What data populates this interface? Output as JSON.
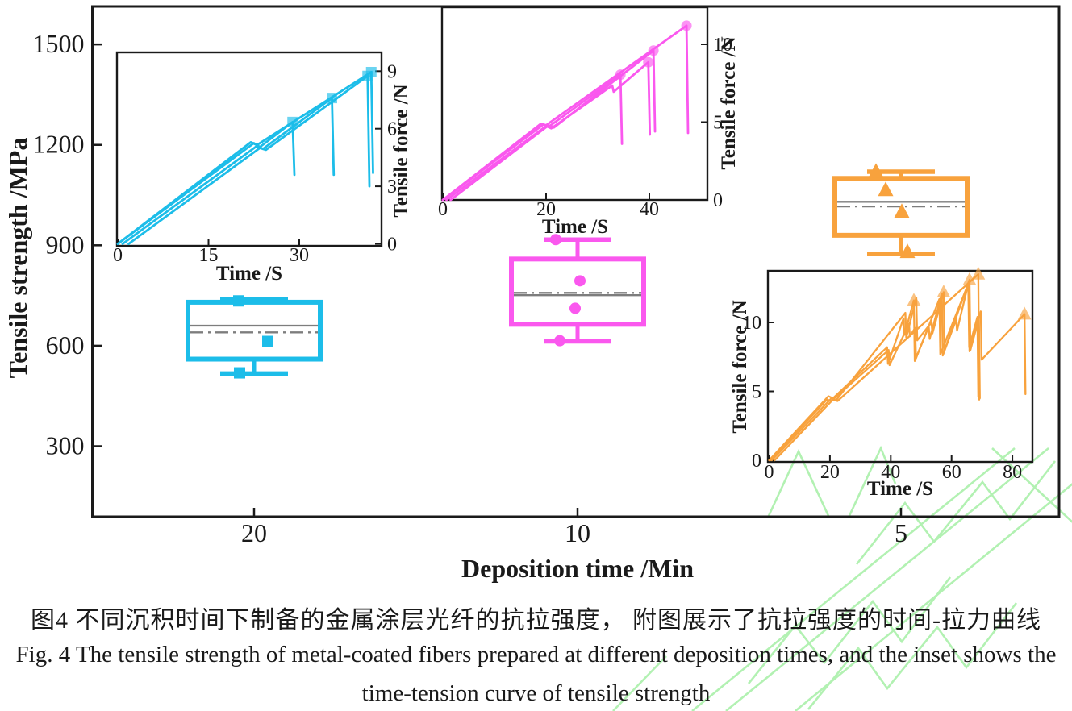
{
  "figure_caption": {
    "zh": "图4  不同沉积时间下制备的金属涂层光纤的抗拉强度， 附图展示了抗拉强度的时间-拉力曲线",
    "en_line1": "Fig. 4 The tensile strength of metal-coated fibers prepared at different deposition times, and the inset shows the",
    "en_line2": "time-tension curve of tensile strength"
  },
  "colors": {
    "cyan": "#1cbde9",
    "magenta": "#fa58ee",
    "orange": "#f8a23d",
    "axis": "#1a1a1a",
    "stat_line": "#7d7d7d",
    "watermark": "#a5efa5"
  },
  "chart_data": [
    {
      "id": "main-boxplot",
      "type": "box",
      "xlabel": "Deposition time /Min",
      "ylabel": "Tensile strength /MPa",
      "categories": [
        "20",
        "10",
        "5"
      ],
      "y_ticks": [
        300,
        600,
        900,
        1200,
        1500
      ],
      "ylim": [
        150,
        1590
      ],
      "grid": false,
      "series": [
        {
          "name": "20min",
          "color": "#1cbde9",
          "marker": "square",
          "box": {
            "whisker_low": 517,
            "q1": 560,
            "median": 660,
            "mean": 640,
            "q3": 730,
            "whisker_high": 740
          },
          "data_points": [
            [
              -19,
              734
            ],
            [
              17,
              613
            ],
            [
              -18,
              519
            ]
          ]
        },
        {
          "name": "10min",
          "color": "#fa58ee",
          "marker": "circle",
          "box": {
            "whisker_low": 613,
            "q1": 664,
            "median": 751,
            "mean": 758,
            "q3": 859,
            "whisker_high": 917
          },
          "data_points": [
            [
              -27,
              917
            ],
            [
              3,
              794
            ],
            [
              -3,
              712
            ],
            [
              -22,
              615
            ]
          ]
        },
        {
          "name": "5min",
          "color": "#f8a23d",
          "marker": "triangle",
          "box": {
            "whisker_low": 875,
            "q1": 930,
            "median": 1030,
            "mean": 1016,
            "q3": 1100,
            "whisker_high": 1120
          },
          "data_points": [
            [
              -31,
              1120
            ],
            [
              -19,
              1065
            ],
            [
              1,
              1000
            ],
            [
              8,
              880
            ]
          ]
        }
      ]
    },
    {
      "id": "inset-20min",
      "type": "line",
      "xlabel": "Time /S",
      "ylabel": "Tensile force /N",
      "x_ticks": [
        0,
        15,
        30
      ],
      "y_ticks": [
        0,
        3,
        6,
        9
      ],
      "xlim": [
        0,
        43.6
      ],
      "ylim": [
        0,
        10.1
      ],
      "y_axis_side": "right",
      "color": "#1cbde9",
      "marker": "square",
      "series": [
        {
          "points": [
            [
              0,
              0
            ],
            [
              22.5,
              5.25
            ],
            [
              23.5,
              5.05
            ],
            [
              28.9,
              6.35
            ],
            [
              29.2,
              3.6
            ]
          ]
        },
        {
          "points": [
            [
              0.8,
              0
            ],
            [
              23,
              5.1
            ],
            [
              24,
              4.95
            ],
            [
              35.4,
              7.6
            ],
            [
              35.7,
              3.6
            ]
          ]
        },
        {
          "points": [
            [
              1.8,
              0
            ],
            [
              23.5,
              5.0
            ],
            [
              24.5,
              4.9
            ],
            [
              41.3,
              8.75
            ],
            [
              41.6,
              3.0
            ]
          ]
        },
        {
          "points": [
            [
              0,
              0
            ],
            [
              22,
              5.3
            ],
            [
              23,
              5.15
            ],
            [
              41.9,
              8.95
            ],
            [
              42.2,
              3.7
            ]
          ]
        }
      ],
      "peak_markers": [
        [
          28.9,
          6.35
        ],
        [
          35.4,
          7.6
        ],
        [
          41.3,
          8.75
        ],
        [
          41.9,
          8.95
        ]
      ]
    },
    {
      "id": "inset-10min",
      "type": "line",
      "xlabel": "Time /S",
      "ylabel": "Tensile force /N",
      "x_ticks": [
        0,
        20,
        40
      ],
      "y_ticks": [
        0,
        5,
        10
      ],
      "xlim": [
        0,
        51.3
      ],
      "ylim": [
        0,
        12.3
      ],
      "y_axis_side": "right",
      "color": "#fa58ee",
      "marker": "circle",
      "series": [
        {
          "points": [
            [
              0,
              0
            ],
            [
              19.5,
              4.85
            ],
            [
              20.5,
              4.7
            ],
            [
              34.4,
              8.05
            ],
            [
              34.7,
              3.6
            ]
          ]
        },
        {
          "points": [
            [
              0.7,
              0
            ],
            [
              20,
              4.75
            ],
            [
              21,
              4.6
            ],
            [
              32.8,
              7.35
            ],
            [
              33.1,
              6.95
            ],
            [
              39.8,
              8.85
            ],
            [
              40.1,
              4.2
            ]
          ]
        },
        {
          "points": [
            [
              1.5,
              0
            ],
            [
              20.5,
              4.8
            ],
            [
              21.5,
              4.65
            ],
            [
              40.8,
              9.6
            ],
            [
              41.1,
              4.4
            ]
          ]
        },
        {
          "points": [
            [
              0,
              0
            ],
            [
              19,
              4.9
            ],
            [
              20,
              4.8
            ],
            [
              47.2,
              11.2
            ],
            [
              47.5,
              4.3
            ]
          ]
        }
      ],
      "peak_markers": [
        [
          34.4,
          8.05
        ],
        [
          39.8,
          8.85
        ],
        [
          40.8,
          9.6
        ],
        [
          47.2,
          11.2
        ]
      ]
    },
    {
      "id": "inset-5min",
      "type": "line",
      "xlabel": "Time /S",
      "ylabel": "Tensile force /N",
      "x_ticks": [
        0,
        20,
        40,
        60,
        80
      ],
      "y_ticks": [
        0,
        5,
        10
      ],
      "xlim": [
        0,
        87
      ],
      "ylim": [
        0,
        13.8
      ],
      "y_axis_side": "left",
      "color": "#f8a23d",
      "marker": "triangle",
      "series": [
        {
          "points": [
            [
              0,
              0
            ],
            [
              19.5,
              4.65
            ],
            [
              21,
              4.5
            ],
            [
              38.8,
              8.2
            ],
            [
              39.1,
              7.0
            ],
            [
              44.2,
              10.3
            ],
            [
              44.5,
              9.1
            ],
            [
              47.6,
              11.6
            ],
            [
              47.9,
              7.2
            ],
            [
              52.5,
              9.7
            ],
            [
              52.8,
              8.8
            ],
            [
              56.8,
              12.1
            ],
            [
              57.1,
              7.6
            ],
            [
              61.5,
              10.2
            ],
            [
              61.8,
              9.4
            ],
            [
              65.6,
              12.9
            ],
            [
              65.9,
              7.9
            ],
            [
              69,
              10.5
            ],
            [
              69.3,
              4.5
            ]
          ]
        },
        {
          "points": [
            [
              0.9,
              0
            ],
            [
              20.5,
              4.5
            ],
            [
              22,
              4.35
            ],
            [
              44.8,
              10.7
            ],
            [
              45.1,
              8.9
            ],
            [
              48.4,
              11.8
            ],
            [
              48.7,
              8.7
            ],
            [
              53.4,
              10.0
            ],
            [
              53.7,
              9.2
            ],
            [
              57.4,
              12.2
            ],
            [
              57.7,
              8.0
            ],
            [
              65.9,
              13.1
            ],
            [
              66.2,
              8.0
            ],
            [
              69.6,
              10.8
            ],
            [
              69.9,
              7.3
            ],
            [
              84,
              10.6
            ],
            [
              84.3,
              4.8
            ]
          ]
        },
        {
          "points": [
            [
              1.8,
              0
            ],
            [
              21,
              4.4
            ],
            [
              22.5,
              4.3
            ],
            [
              68.8,
              13.5
            ],
            [
              69.1,
              4.4
            ]
          ]
        },
        {
          "points": [
            [
              0.4,
              0
            ],
            [
              19,
              4.4
            ],
            [
              20.5,
              4.3
            ],
            [
              39.3,
              8.0
            ],
            [
              39.6,
              6.9
            ],
            [
              46,
              9.9
            ],
            [
              46.3,
              9.0
            ],
            [
              48,
              9.6
            ],
            [
              48.3,
              7.4
            ],
            [
              56,
              11.7
            ],
            [
              56.3,
              7.7
            ],
            [
              65.5,
              12.8
            ],
            [
              65.8,
              8.2
            ],
            [
              68.5,
              10.4
            ],
            [
              68.8,
              4.6
            ]
          ]
        }
      ],
      "peak_markers": [
        [
          47.6,
          11.6
        ],
        [
          57.4,
          12.2
        ],
        [
          65.9,
          13.1
        ],
        [
          68.8,
          13.5
        ],
        [
          84,
          10.6
        ]
      ]
    }
  ]
}
